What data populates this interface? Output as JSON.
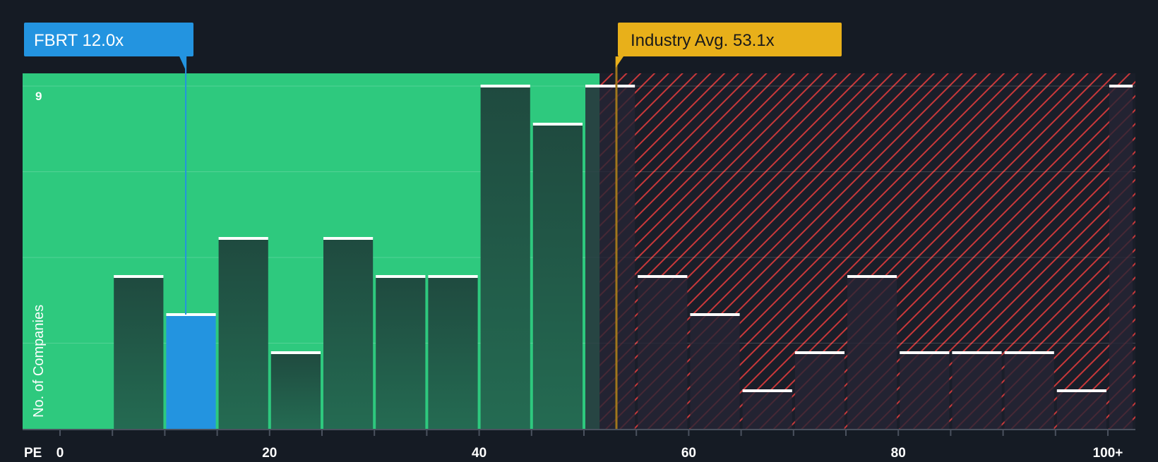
{
  "chart_data": {
    "type": "bar",
    "title": "",
    "xlabel": "PE",
    "ylabel": "No. of Companies",
    "x_tick_labels": [
      "0",
      "20",
      "40",
      "60",
      "80",
      "100+"
    ],
    "x_tick_values": [
      0,
      20,
      40,
      60,
      80,
      100
    ],
    "x_range": [
      0,
      102.5
    ],
    "ylim": [
      0,
      9
    ],
    "y_tick_labels": [
      "9"
    ],
    "y_tick_values": [
      9
    ],
    "bins": [
      {
        "start": 5,
        "end": 10,
        "value": 4
      },
      {
        "start": 10,
        "end": 15,
        "value": 3,
        "highlight": true
      },
      {
        "start": 15,
        "end": 20,
        "value": 5
      },
      {
        "start": 20,
        "end": 25,
        "value": 2
      },
      {
        "start": 25,
        "end": 30,
        "value": 5
      },
      {
        "start": 30,
        "end": 35,
        "value": 4
      },
      {
        "start": 35,
        "end": 40,
        "value": 4
      },
      {
        "start": 40,
        "end": 45,
        "value": 9
      },
      {
        "start": 45,
        "end": 50,
        "value": 8
      },
      {
        "start": 50,
        "end": 55,
        "value": 9
      },
      {
        "start": 55,
        "end": 60,
        "value": 4
      },
      {
        "start": 60,
        "end": 65,
        "value": 3
      },
      {
        "start": 65,
        "end": 70,
        "value": 1
      },
      {
        "start": 70,
        "end": 75,
        "value": 2
      },
      {
        "start": 75,
        "end": 80,
        "value": 4
      },
      {
        "start": 80,
        "end": 85,
        "value": 2
      },
      {
        "start": 85,
        "end": 90,
        "value": 2
      },
      {
        "start": 90,
        "end": 95,
        "value": 2
      },
      {
        "start": 95,
        "end": 100,
        "value": 1
      },
      {
        "start": 100,
        "end": 102.5,
        "value": 9
      }
    ],
    "company": {
      "label": "FBRT 12.0x",
      "value": 12.0
    },
    "industry_avg": {
      "label": "Industry Avg. 53.1x",
      "value": 53.1
    },
    "fair_region_end": 51.5
  },
  "colors": {
    "background": "#151b24",
    "green_zone": "#2ec97e",
    "bar_dark": "#1f4a3f",
    "company_bar": "#2394e0",
    "company_label_bg": "#2394e0",
    "industry_label_bg": "#e8b01a",
    "industry_line": "#a0761c",
    "hatch_red": "#c8383a",
    "cap_white": "#ffffff"
  }
}
